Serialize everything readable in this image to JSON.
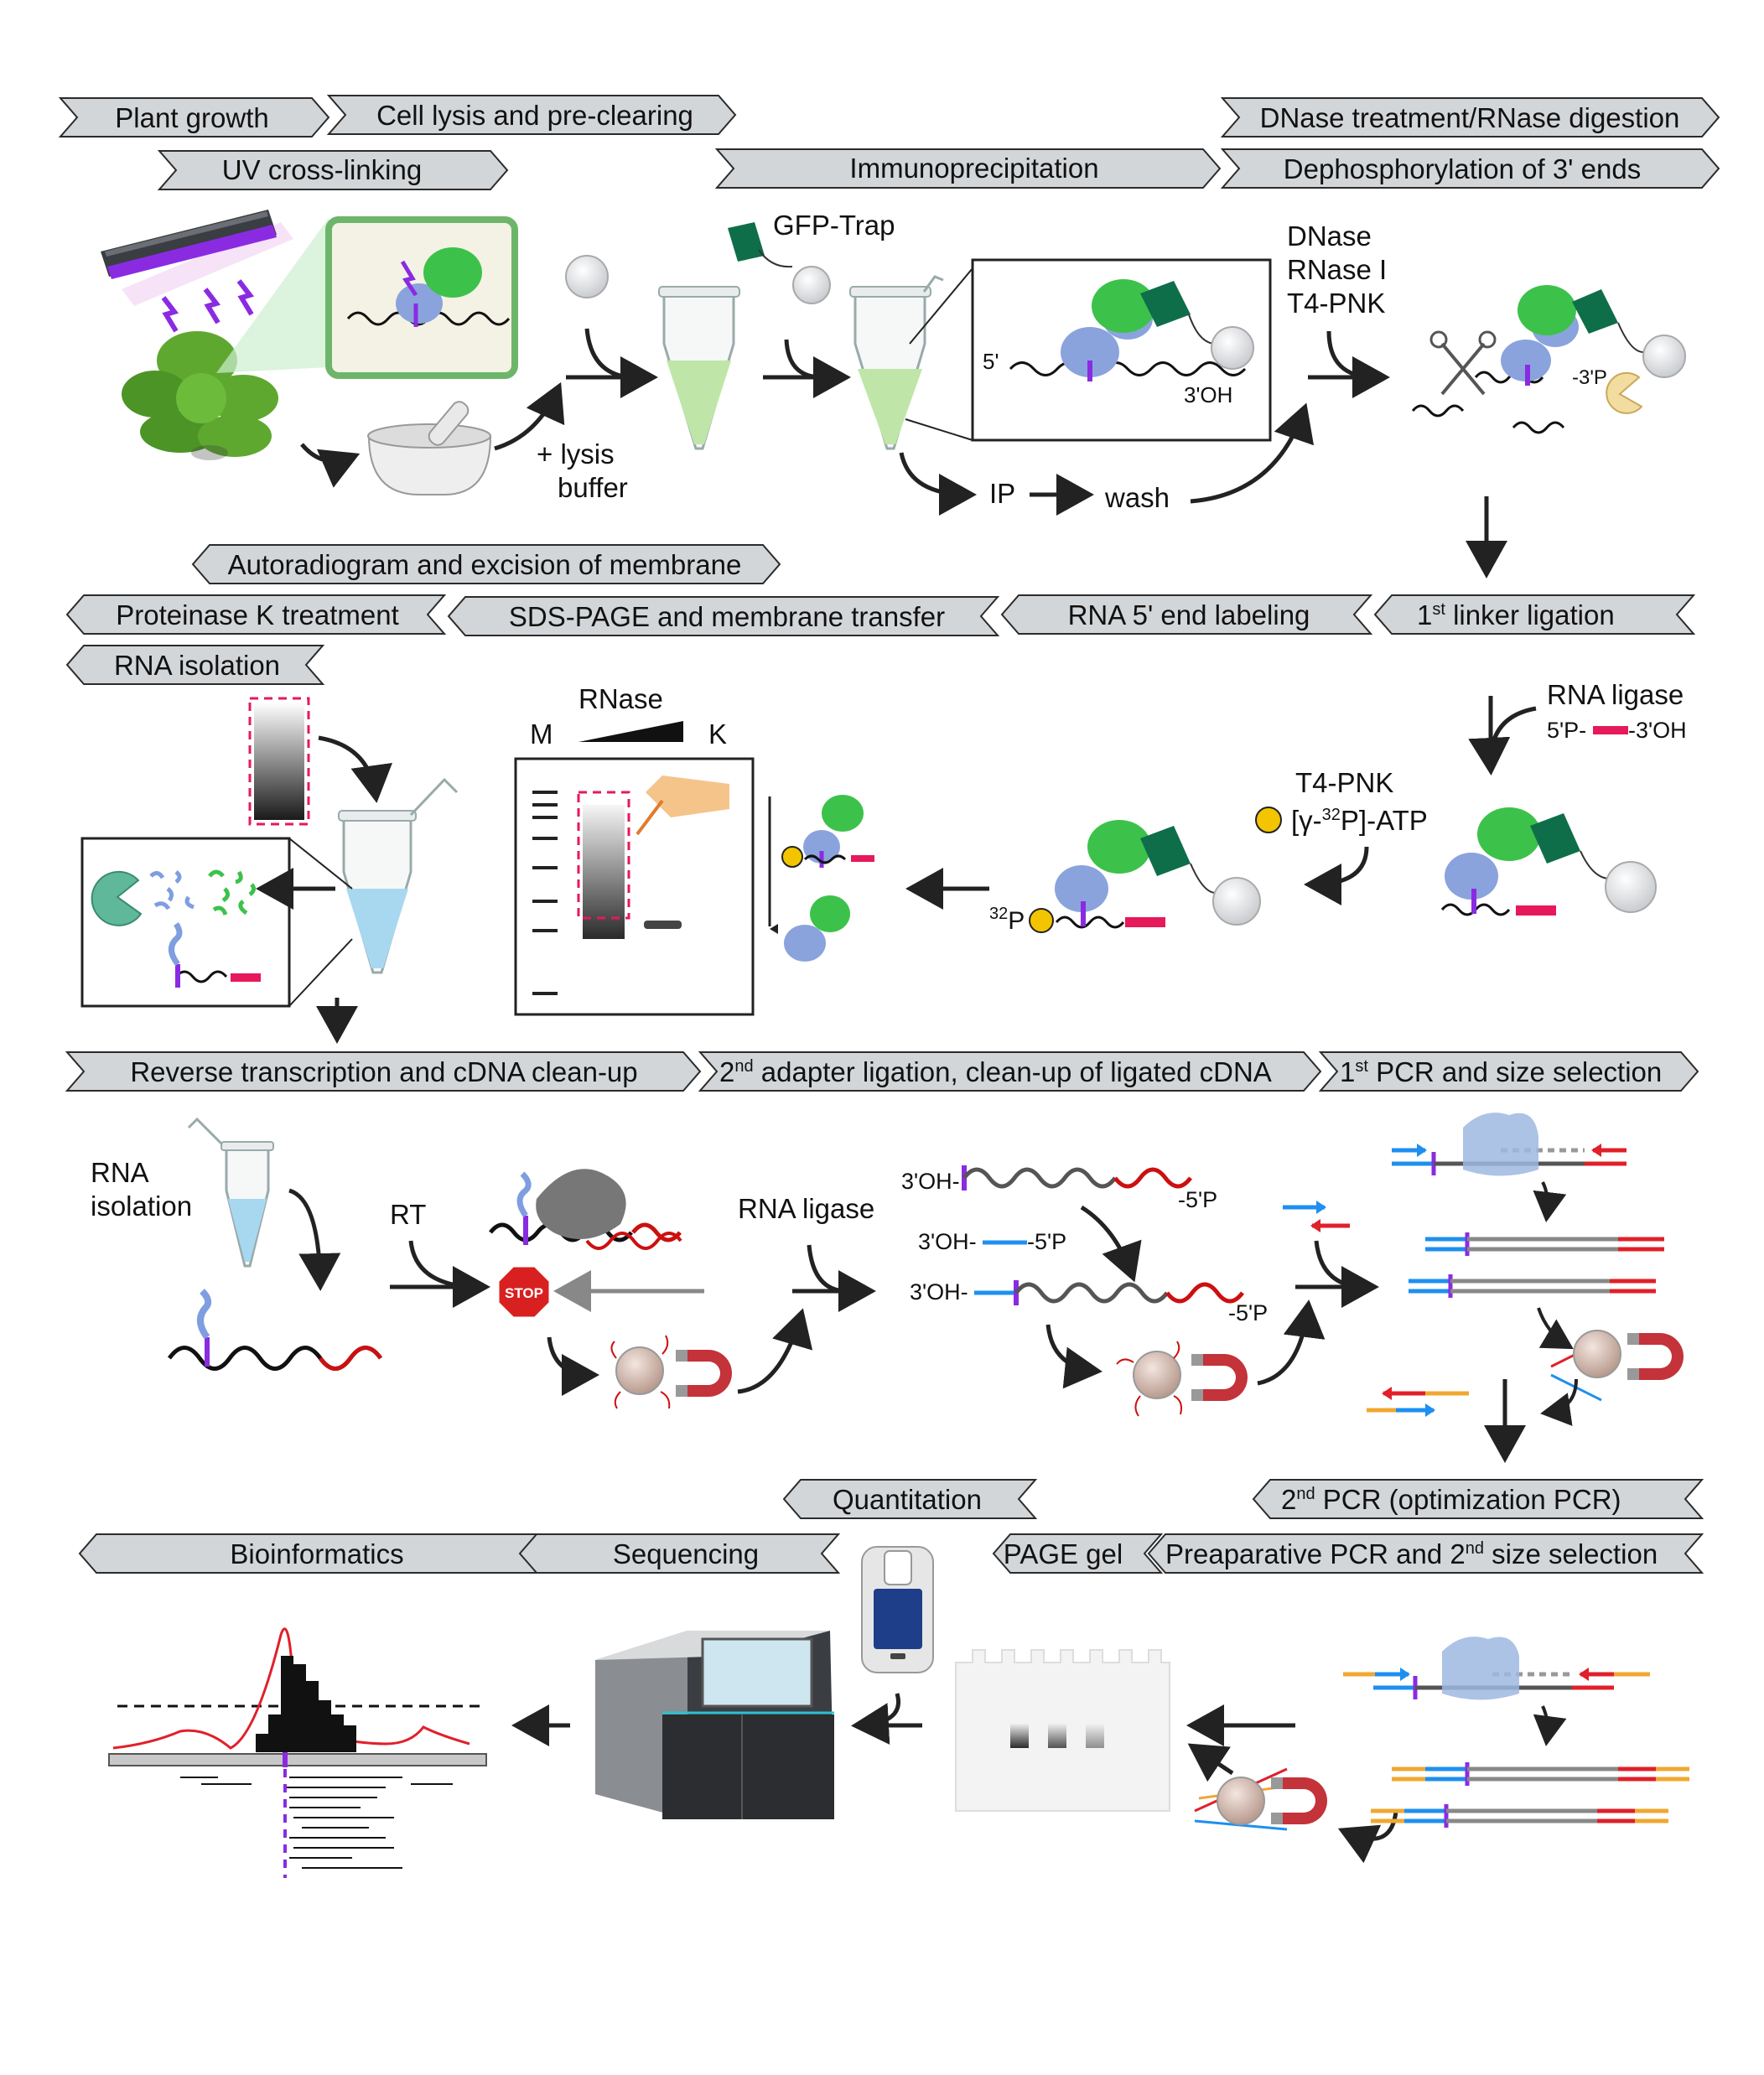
{
  "row1": {
    "banners": {
      "plant_growth": "Plant growth",
      "cell_lysis": "Cell lysis and pre-clearing",
      "uv_crosslinking": "UV cross-linking",
      "immunoprecipitation": "Immunoprecipitation",
      "dnase_rnase": "DNase treatment/RNase digestion",
      "dephosphorylation": "Dephosphorylation of 3' ends"
    },
    "labels": {
      "gfp_trap": "GFP-Trap",
      "lysis_line1": "+ lysis",
      "lysis_line2": "buffer",
      "ip": "IP",
      "wash": "wash",
      "five_prime": "5'",
      "three_oh": "3'OH",
      "enzyme1": "DNase",
      "enzyme2": "RNase I",
      "enzyme3": "T4-PNK",
      "three_p": "-3'P"
    }
  },
  "row2": {
    "banners": {
      "autoradiogram": "Autoradiogram and excision of membrane",
      "proteinase": "Proteinase K treatment",
      "sds_page": "SDS-PAGE and membrane transfer",
      "rna_labeling": "RNA 5' end labeling",
      "linker_sup": "st",
      "linker_pre": "1",
      "linker_post": " linker ligation",
      "rna_isolation": "RNA isolation"
    },
    "labels": {
      "rnase": "RNase",
      "m": "M",
      "k": "K",
      "rna_ligase": "RNA ligase",
      "linker_5p": "5'P-",
      "linker_3oh": "-3'OH",
      "t4pnk": "T4-PNK",
      "atp_pre": "[γ-",
      "atp_sup": "32",
      "atp_post": "P]-ATP",
      "p32_sup": "32",
      "p32_p": "P"
    }
  },
  "row3": {
    "banners": {
      "rt": "Reverse transcription and cDNA clean-up",
      "adapter_pre": "2",
      "adapter_sup": "nd",
      "adapter_post": " adapter ligation, clean-up of ligated cDNA",
      "pcr1_pre": "1",
      "pcr1_sup": "st",
      "pcr1_post": " PCR and size selection"
    },
    "labels": {
      "rna_iso_1": "RNA",
      "rna_iso_2": "isolation",
      "rt": "RT",
      "stop": "STOP",
      "rna_ligase": "RNA ligase",
      "oh3": "3'OH-",
      "p5": "-5'P"
    }
  },
  "row4": {
    "banners": {
      "quantitation": "Quantitation",
      "pcr2_pre": "2",
      "pcr2_sup": "nd",
      "pcr2_post": " PCR (optimization PCR)",
      "bioinformatics": "Bioinformatics",
      "sequencing": "Sequencing",
      "page_gel": "PAGE gel",
      "prep_pre": "Preaparative PCR and 2",
      "prep_sup": "nd",
      "prep_post": " size selection"
    }
  },
  "colors": {
    "banner_fill": "#d3d6d9",
    "banner_stroke": "#2b2b2b",
    "gfp_green": "#3cc24a",
    "protein_blue": "#8aa3dd",
    "crosslink_purple": "#8a2be2",
    "linker_red": "#e6195a",
    "primer_blue": "#1e8ff0",
    "primer_red": "#e0202a",
    "adapter_orange": "#f0a830",
    "trap_teal": "#0f6e4a",
    "tube_green": "#bfe6a8",
    "tube_blue": "#a8d8f0"
  },
  "icons": [
    "uv-lamp-icon",
    "plant-icon",
    "mortar-icon",
    "bead-icon",
    "tube-icon",
    "scissors-icon",
    "pacman-enzyme-icon",
    "radioactive-icon",
    "stop-sign-icon",
    "magnet-icon",
    "polymerase-icon",
    "sequencer-icon",
    "qubit-icon",
    "gel-icon"
  ]
}
